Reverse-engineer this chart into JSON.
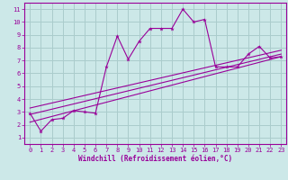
{
  "bg_color": "#cce8e8",
  "grid_color": "#aacccc",
  "line_color": "#990099",
  "xlabel": "Windchill (Refroidissement éolien,°C)",
  "xlim": [
    -0.5,
    23.5
  ],
  "ylim": [
    0.5,
    11.5
  ],
  "xticks": [
    0,
    1,
    2,
    3,
    4,
    5,
    6,
    7,
    8,
    9,
    10,
    11,
    12,
    13,
    14,
    15,
    16,
    17,
    18,
    19,
    20,
    21,
    22,
    23
  ],
  "yticks": [
    1,
    2,
    3,
    4,
    5,
    6,
    7,
    8,
    9,
    10,
    11
  ],
  "jagged_x": [
    0,
    1,
    2,
    3,
    4,
    5,
    6,
    7,
    8,
    9,
    10,
    11,
    12,
    13,
    14,
    15,
    16,
    17,
    18,
    19,
    20,
    21,
    22,
    23
  ],
  "jagged_y": [
    2.9,
    1.5,
    2.4,
    2.5,
    3.1,
    3.0,
    2.9,
    6.5,
    8.9,
    7.1,
    8.5,
    9.5,
    9.5,
    9.5,
    11.0,
    10.0,
    10.2,
    6.5,
    6.5,
    6.5,
    7.5,
    8.1,
    7.2,
    7.3
  ],
  "reg_lines": [
    {
      "x": [
        0,
        23
      ],
      "y": [
        2.2,
        7.3
      ]
    },
    {
      "x": [
        0,
        23
      ],
      "y": [
        2.8,
        7.5
      ]
    },
    {
      "x": [
        0,
        23
      ],
      "y": [
        3.3,
        7.8
      ]
    }
  ],
  "tick_fontsize": 5.0,
  "xlabel_fontsize": 5.5,
  "marker_size": 3.5
}
